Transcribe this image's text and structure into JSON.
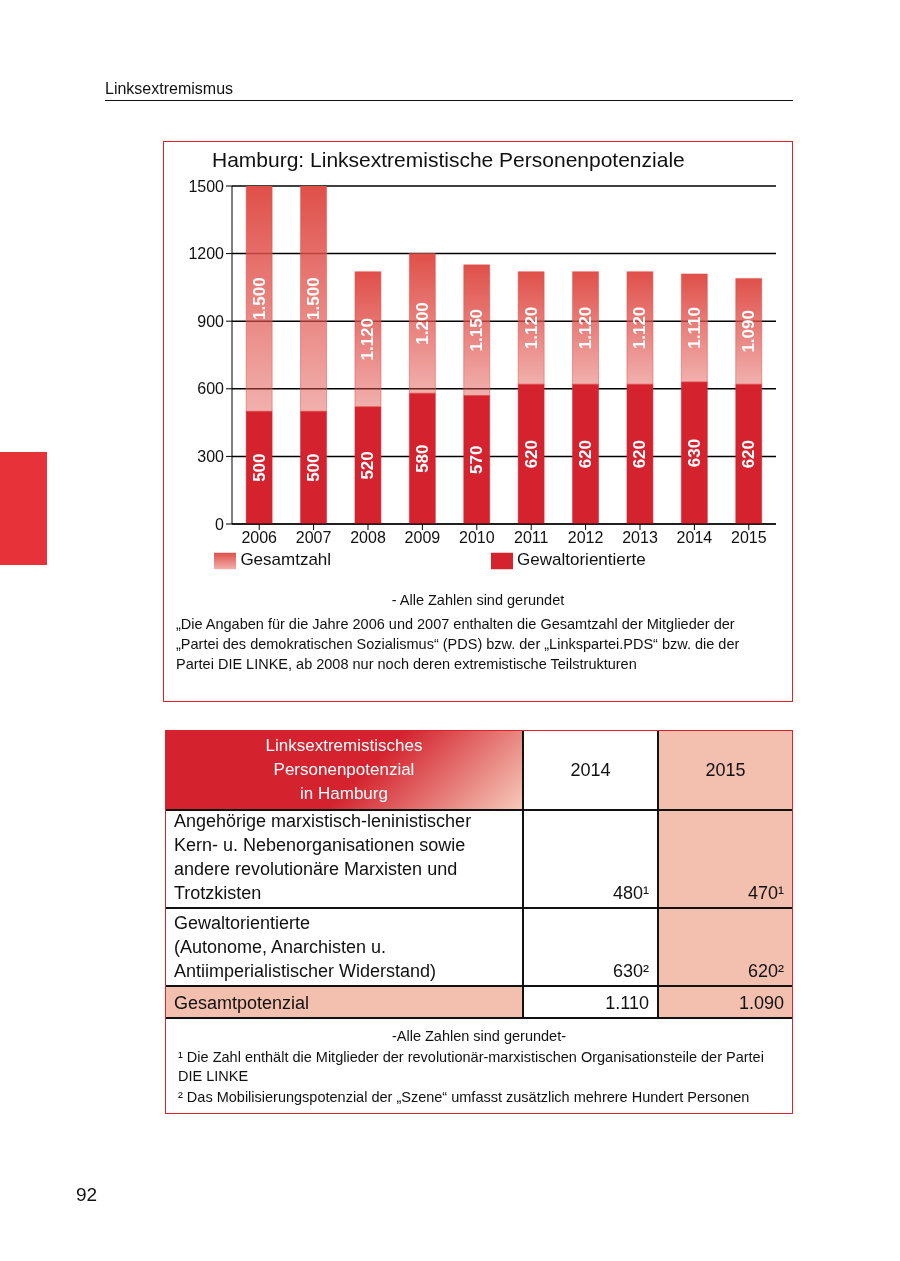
{
  "chart_data": [
    {
      "type": "other",
      "annotations": [
        "Linksextremismus"
      ]
    },
    {
      "type": "bar",
      "title": "Hamburg: Linksextremistische Personenpotenziale",
      "categories": [
        "2006",
        "2007",
        "2008",
        "2009",
        "2010",
        "2011",
        "2012",
        "2013",
        "2014",
        "2015"
      ],
      "stacked": true,
      "ylim": [
        0,
        1500
      ],
      "yticks": [
        0,
        300,
        600,
        900,
        1200,
        1500
      ],
      "grid": "y",
      "legend": "bottom",
      "series": [
        {
          "name": "Gewaltorientierte",
          "color": "#d4232e",
          "values": [
            500,
            500,
            520,
            580,
            570,
            620,
            620,
            620,
            630,
            620
          ],
          "value_labels": [
            "500",
            "500",
            "520",
            "580",
            "570",
            "620",
            "620",
            "620",
            "630",
            "620"
          ]
        },
        {
          "name": "Gesamtzahl",
          "color": "#e0504a",
          "values": [
            1000,
            1000,
            600,
            620,
            580,
            500,
            500,
            500,
            480,
            470
          ]
        }
      ],
      "totals": [
        "1.500",
        "1.500",
        "1.120",
        "1.200",
        "1.150",
        "1.120",
        "1.120",
        "1.120",
        "1.110",
        "1.090"
      ],
      "annotations": [
        "- Alle Zahlen sind gerundet",
        "„Die Angaben für die Jahre 2006 und 2007 enthalten die Gesamtzahl der Mitglieder der „Partei des demokratischen Sozialismus“ (PDS) bzw. der „Linkspartei.PDS“ bzw. die der Partei DIE LINKE, ab 2008 nur noch deren extremistische Teilstrukturen"
      ]
    },
    {
      "type": "other",
      "annotations": [
        "Linksextremistisches\nPersonenpotenzial\nin Hamburg",
        "2014",
        "2015",
        "Angehörige marxistisch-leninistischer\nKern- u. Nebenorganisationen sowie\nandere revolutionäre Marxisten und\nTrotzkisten",
        "480¹",
        "470¹",
        "Gewaltorientierte\n(Autonome, Anarchisten u.\nAntiimperialistischer Widerstand)",
        "630²",
        "620²",
        "Gesamtpotenzial",
        "1.110",
        "1.090",
        "-Alle Zahlen sind gerundet-",
        "¹ Die Zahl enthält die Mitglieder der revolutionär-marxistischen Organisationsteile der Partei DIE LINKE",
        "² Das Mobilisierungspotenzial der „Szene“ umfasst zusätzlich mehrere Hundert Personen"
      ]
    },
    {
      "type": "other",
      "annotations": [
        "92"
      ]
    }
  ]
}
